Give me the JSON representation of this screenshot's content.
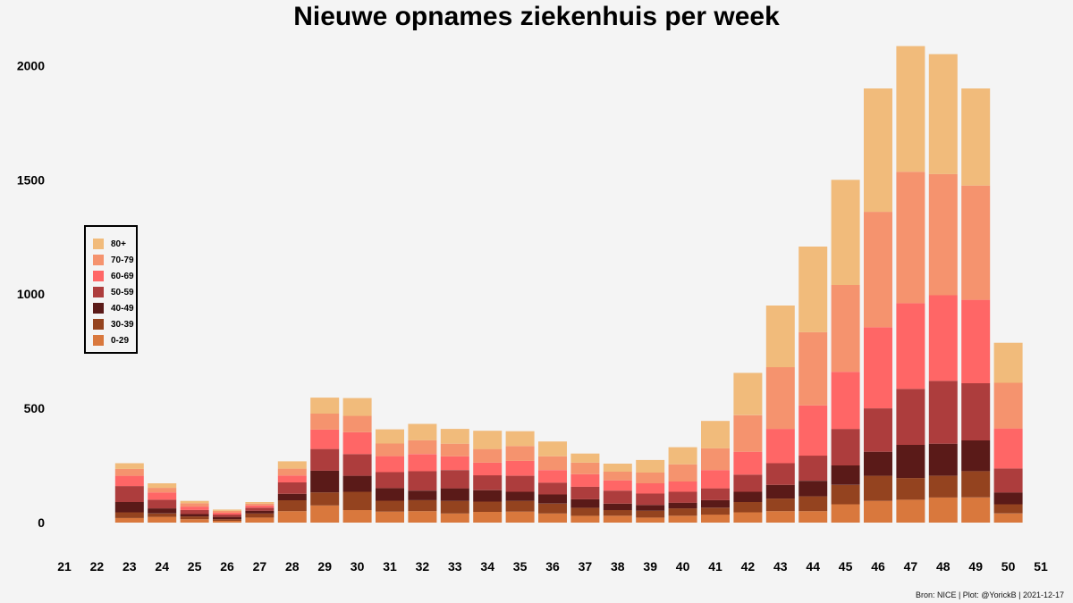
{
  "chart_data": {
    "type": "bar",
    "stacked": true,
    "title": "Nieuwe opnames ziekenhuis per week",
    "xlabel": "",
    "ylabel": "",
    "x_ticks": [
      "21",
      "22",
      "23",
      "24",
      "25",
      "26",
      "27",
      "28",
      "29",
      "30",
      "31",
      "32",
      "33",
      "34",
      "35",
      "36",
      "37",
      "38",
      "39",
      "40",
      "41",
      "42",
      "43",
      "44",
      "45",
      "46",
      "47",
      "48",
      "49",
      "50",
      "51"
    ],
    "y_ticks": [
      0,
      500,
      1000,
      1500,
      2000
    ],
    "ylim": [
      0,
      2150
    ],
    "grid": false,
    "legend_position": "left",
    "categories": [
      "23",
      "24",
      "25",
      "26",
      "27",
      "28",
      "29",
      "30",
      "31",
      "32",
      "33",
      "34",
      "35",
      "36",
      "37",
      "38",
      "39",
      "40",
      "41",
      "42",
      "43",
      "44",
      "45",
      "46",
      "47",
      "48",
      "49",
      "50"
    ],
    "series": [
      {
        "name": "0-29",
        "color": "#d9783d",
        "values": [
          20,
          25,
          15,
          8,
          22,
          50,
          75,
          55,
          48,
          50,
          40,
          47,
          48,
          40,
          30,
          30,
          22,
          30,
          35,
          45,
          50,
          50,
          80,
          95,
          100,
          110,
          110,
          40
        ]
      },
      {
        "name": "30-39",
        "color": "#94431f",
        "values": [
          25,
          15,
          12,
          7,
          18,
          48,
          57,
          80,
          48,
          48,
          55,
          45,
          47,
          43,
          35,
          25,
          30,
          32,
          30,
          45,
          55,
          65,
          85,
          110,
          95,
          95,
          115,
          40
        ]
      },
      {
        "name": "40-49",
        "color": "#5a1a18",
        "values": [
          45,
          22,
          10,
          10,
          12,
          28,
          95,
          70,
          55,
          42,
          55,
          50,
          40,
          40,
          37,
          28,
          25,
          25,
          33,
          45,
          60,
          68,
          85,
          105,
          145,
          140,
          135,
          52
        ]
      },
      {
        "name": "50-59",
        "color": "#ad3d3d",
        "values": [
          70,
          38,
          18,
          10,
          13,
          50,
          95,
          95,
          70,
          85,
          80,
          65,
          70,
          52,
          55,
          57,
          50,
          48,
          52,
          75,
          95,
          110,
          160,
          190,
          245,
          275,
          250,
          105
        ]
      },
      {
        "name": "60-69",
        "color": "#ff6666",
        "values": [
          45,
          32,
          15,
          8,
          10,
          30,
          85,
          95,
          70,
          75,
          60,
          55,
          65,
          55,
          55,
          45,
          45,
          45,
          80,
          100,
          150,
          220,
          250,
          355,
          375,
          375,
          365,
          175
        ]
      },
      {
        "name": "70-79",
        "color": "#f5936e",
        "values": [
          30,
          20,
          15,
          8,
          8,
          30,
          70,
          72,
          55,
          60,
          55,
          60,
          65,
          60,
          50,
          38,
          47,
          75,
          95,
          160,
          270,
          320,
          380,
          505,
          575,
          530,
          500,
          200
        ]
      },
      {
        "name": "80+",
        "color": "#f1bb7b",
        "values": [
          25,
          20,
          10,
          6,
          7,
          32,
          70,
          78,
          62,
          72,
          65,
          80,
          65,
          65,
          40,
          35,
          55,
          75,
          120,
          185,
          270,
          375,
          460,
          540,
          550,
          525,
          425,
          175
        ]
      }
    ],
    "legend_order": [
      "80+",
      "70-79",
      "60-69",
      "50-59",
      "40-49",
      "30-39",
      "0-29"
    ]
  },
  "caption": "Bron: NICE | Plot: @YorickB |  2021-12-17"
}
